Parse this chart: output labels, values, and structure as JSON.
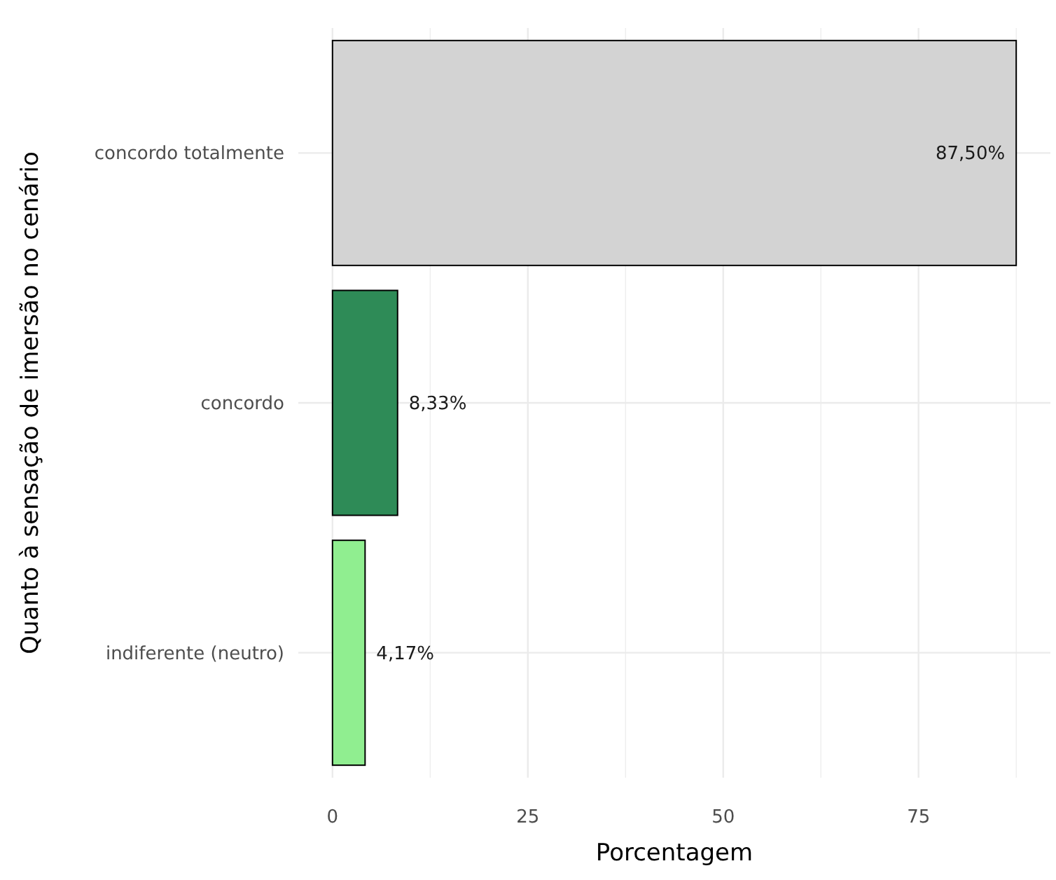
{
  "chart_data": {
    "type": "bar",
    "orientation": "horizontal",
    "xlabel": "Porcentagem",
    "ylabel": "Quanto à sensação de imersão no cenário",
    "categories": [
      "concordo totalmente",
      "concordo",
      "indiferente (neutro)"
    ],
    "values": [
      87.5,
      8.33,
      4.17
    ],
    "colors": [
      "#d3d3d3",
      "#2e8b57",
      "#90ee90"
    ],
    "value_labels": [
      "87,50%",
      "8,33%",
      "4,17%"
    ],
    "xlim": [
      -4.375,
      91.875
    ],
    "xticks": [
      0,
      {
        "value": 12.5,
        "label": null
      },
      25,
      {
        "value": 37.5,
        "label": null
      },
      50,
      {
        "value": 62.5,
        "label": null
      },
      75,
      {
        "value": 87.5,
        "label": null
      }
    ],
    "grid": true
  }
}
